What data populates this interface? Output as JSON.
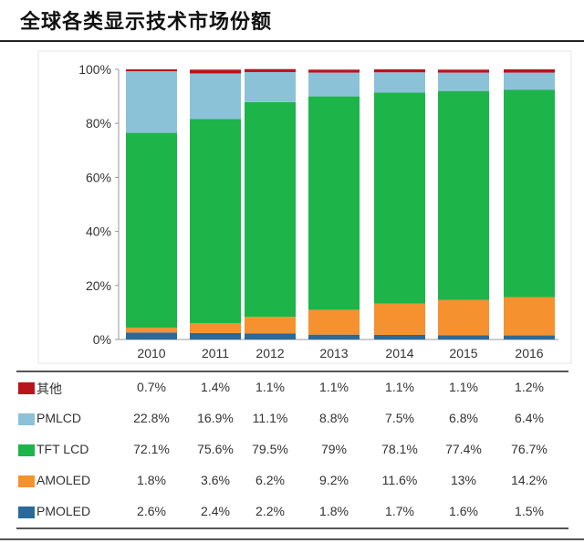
{
  "title": "全球各类显示技术市场份额",
  "chart_data": {
    "type": "bar",
    "stacked": true,
    "title": "全球各类显示技术市场份额",
    "categories": [
      "2010",
      "2011",
      "2012",
      "2013",
      "2014",
      "2015",
      "2016"
    ],
    "yticks": [
      "0%",
      "20%",
      "40%",
      "60%",
      "80%",
      "100%"
    ],
    "ylim": [
      0,
      100
    ],
    "grid": false,
    "legend": "table-below",
    "series": [
      {
        "name": "其他",
        "color": "#b8141c",
        "values": [
          0.7,
          1.4,
          1.1,
          1.1,
          1.1,
          1.1,
          1.2
        ],
        "labels": [
          "0.7%",
          "1.4%",
          "1.1%",
          "1.1%",
          "1.1%",
          "1.1%",
          "1.2%"
        ]
      },
      {
        "name": "PMLCD",
        "color": "#8cc2d8",
        "values": [
          22.8,
          16.9,
          11.1,
          8.8,
          7.5,
          6.8,
          6.4
        ],
        "labels": [
          "22.8%",
          "16.9%",
          "11.1%",
          "8.8%",
          "7.5%",
          "6.8%",
          "6.4%"
        ]
      },
      {
        "name": "TFT LCD",
        "color": "#1db44a",
        "values": [
          72.1,
          75.6,
          79.5,
          79,
          78.1,
          77.4,
          76.7
        ],
        "labels": [
          "72.1%",
          "75.6%",
          "79.5%",
          "79%",
          "78.1%",
          "77.4%",
          "76.7%"
        ]
      },
      {
        "name": "AMOLED",
        "color": "#f5922f",
        "values": [
          1.8,
          3.6,
          6.2,
          9.2,
          11.6,
          13,
          14.2
        ],
        "labels": [
          "1.8%",
          "3.6%",
          "6.2%",
          "9.2%",
          "11.6%",
          "13%",
          "14.2%"
        ]
      },
      {
        "name": "PMOLED",
        "color": "#2a6a9a",
        "values": [
          2.6,
          2.4,
          2.2,
          1.8,
          1.7,
          1.6,
          1.5
        ],
        "labels": [
          "2.6%",
          "2.4%",
          "2.2%",
          "1.8%",
          "1.7%",
          "1.6%",
          "1.5%"
        ]
      }
    ]
  }
}
